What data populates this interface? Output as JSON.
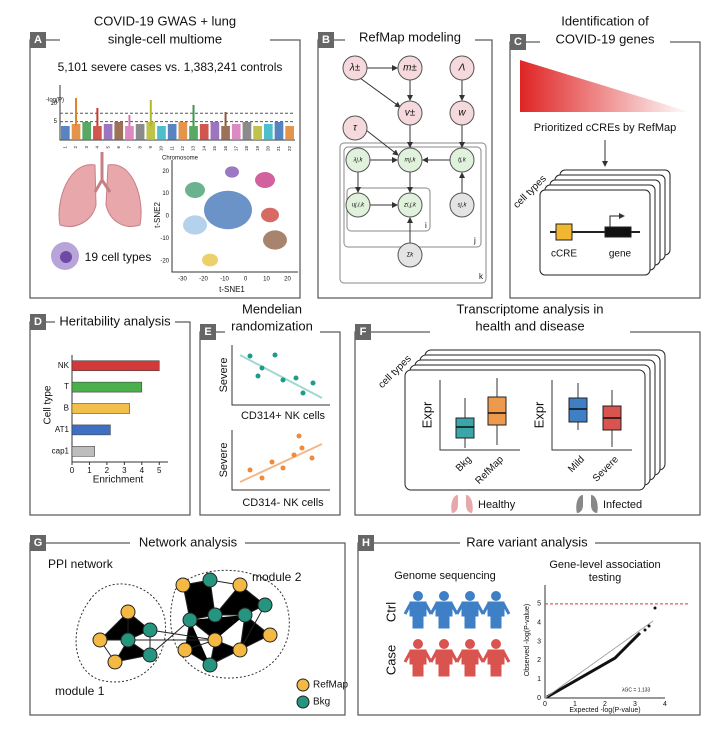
{
  "panels": {
    "a": {
      "label": "A",
      "title_lines": [
        "COVID-19 GWAS + lung",
        "single-cell multiome"
      ],
      "subtitle": "5,101 severe cases vs. 1,383,241 controls",
      "manhattan": {
        "ylabel": "-log(P)",
        "xlabel": "Chromosome",
        "ylim": [
          0,
          15
        ],
        "yticks": [
          5,
          10
        ],
        "significance_lines": [
          7.3,
          5
        ],
        "chromosomes": [
          "1",
          "2",
          "3",
          "4",
          "5",
          "6",
          "7",
          "8",
          "9",
          "10",
          "11",
          "12",
          "13",
          "14",
          "15",
          "16",
          "17",
          "18",
          "19",
          "20",
          "21",
          "22"
        ]
      },
      "cell_types": "19 cell types",
      "tsne": {
        "xlabel": "t-SNE1",
        "ylabel": "t-SNE2",
        "xlim": [
          -35,
          25
        ],
        "xticks": [
          -30,
          -20,
          -10,
          0,
          10,
          20
        ],
        "ylim": [
          -25,
          25
        ],
        "yticks": [
          -20,
          -10,
          0,
          10,
          20
        ]
      }
    },
    "b": {
      "label": "B",
      "title": "RefMap modeling",
      "nodes": [
        "λ±",
        "m±",
        "Λ",
        "τ",
        "v±",
        "w",
        "λj,k",
        "mj,k",
        "tj,k",
        "uj,i,k",
        "zi,j,k",
        "sj,k",
        "Σk"
      ],
      "plates": [
        "i",
        "j",
        "k"
      ]
    },
    "c": {
      "label": "C",
      "title_lines": [
        "Identification of",
        "COVID-19 genes"
      ],
      "gradient_caption": "Prioritized cCREs by RefMap",
      "cell_types": "cell types",
      "ccre": "cCRE",
      "gene": "gene"
    },
    "d": {
      "label": "D",
      "title": "Heritability analysis",
      "ylabel": "Cell type",
      "xlabel": "Enrichment",
      "categories": [
        "NK",
        "T",
        "B",
        "AT1",
        "cap1"
      ],
      "values": [
        5.0,
        4.0,
        3.3,
        2.2,
        1.3
      ],
      "colors": [
        "#d23a3a",
        "#4bb04b",
        "#f2bf4a",
        "#3e6fc4",
        "#bdbdbd"
      ],
      "xlim": [
        0,
        5.5
      ],
      "xticks": [
        0,
        1,
        2,
        3,
        4,
        5
      ]
    },
    "e": {
      "label": "E",
      "title_lines": [
        "Mendelian",
        "randomization"
      ],
      "top_ylabel": "Severe",
      "top_xlabel": "CD314+ NK cells",
      "bottom_ylabel": "Severe",
      "bottom_xlabel": "CD314- NK cells"
    },
    "f": {
      "label": "F",
      "title_lines": [
        "Transcriptome analysis in",
        "health and disease"
      ],
      "cell_types": "cell types",
      "left_ylabel": "Expr",
      "left_groups": [
        "Bkg",
        "RefMap"
      ],
      "right_ylabel": "Expr",
      "right_groups": [
        "Mild",
        "Severe"
      ],
      "healthy": "Healthy",
      "infected": "Infected"
    },
    "g": {
      "label": "G",
      "title": "Network analysis",
      "network": "PPI network",
      "module2": "module 2",
      "module1": "module 1",
      "legend": [
        "RefMap",
        "Bkg"
      ]
    },
    "h": {
      "label": "H",
      "title": "Rare variant analysis",
      "sequencing": "Genome sequencing",
      "ctrl": "Ctrl",
      "case": "Case",
      "qq": {
        "title_lines": [
          "Gene-level association",
          "testing"
        ],
        "xlabel": "Expected -log(P-value)",
        "ylabel": "Observed -log(P-value)",
        "lambda": "λGC = 1.133",
        "xlim": [
          0,
          4
        ],
        "xticks": [
          0,
          1,
          2,
          3,
          4
        ],
        "ylim": [
          0,
          6
        ],
        "yticks": [
          0,
          1,
          2,
          3,
          4,
          5
        ],
        "threshold": 5
      }
    }
  }
}
